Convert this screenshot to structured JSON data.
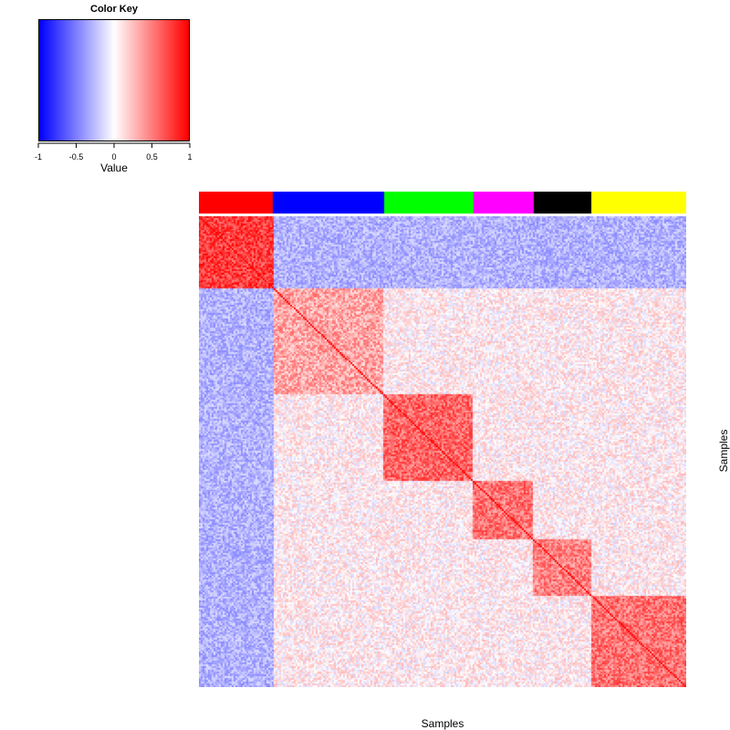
{
  "chart_data": {
    "type": "heatmap",
    "title": "",
    "xlabel": "Samples",
    "ylabel": "Samples",
    "value_range": [
      -1,
      1
    ],
    "color_key": {
      "title": "Color Key",
      "xlabel": "Value",
      "ticks": [
        "-1",
        "-0.5",
        "0",
        "0.5",
        "1"
      ],
      "tick_values": [
        -1,
        -0.5,
        0,
        0.5,
        1
      ],
      "colors": {
        "low": "#0000ff",
        "mid": "#ffffff",
        "high": "#ff0000"
      }
    },
    "groups": [
      {
        "name": "red",
        "color": "#ff0000",
        "share": 0.152,
        "within_mean": 0.75
      },
      {
        "name": "blue",
        "color": "#0000ff",
        "share": 0.228,
        "within_mean": 0.35
      },
      {
        "name": "green",
        "color": "#00ff00",
        "share": 0.183,
        "within_mean": 0.6
      },
      {
        "name": "magenta",
        "color": "#ff00ff",
        "share": 0.124,
        "within_mean": 0.55
      },
      {
        "name": "black",
        "color": "#000000",
        "share": 0.118,
        "within_mean": 0.5
      },
      {
        "name": "yellow",
        "color": "#ffff00",
        "share": 0.195,
        "within_mean": 0.55
      }
    ]
  }
}
